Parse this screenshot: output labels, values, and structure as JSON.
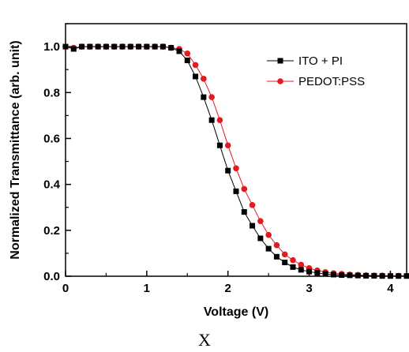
{
  "chart_data": {
    "type": "line",
    "xlabel": "Voltage (V)",
    "ylabel": "Normalized Transmittance (arb. unit)",
    "xlim": [
      0,
      4.2
    ],
    "ylim": [
      0,
      1.1
    ],
    "xticks": [
      "0",
      "1",
      "2",
      "3",
      "4"
    ],
    "yticks": [
      "0.0",
      "0.2",
      "0.4",
      "0.6",
      "0.8",
      "1.0"
    ],
    "legend_position": "top-right",
    "series": [
      {
        "name": "ITO + PI",
        "color": "#000000",
        "marker": "square",
        "x": [
          0,
          0.1,
          0.2,
          0.3,
          0.4,
          0.5,
          0.6,
          0.7,
          0.8,
          0.9,
          1.0,
          1.1,
          1.2,
          1.3,
          1.4,
          1.5,
          1.6,
          1.7,
          1.8,
          1.9,
          2.0,
          2.1,
          2.2,
          2.3,
          2.4,
          2.5,
          2.6,
          2.7,
          2.8,
          2.9,
          3.0,
          3.1,
          3.2,
          3.3,
          3.4,
          3.5,
          3.6,
          3.7,
          3.8,
          3.9,
          4.0,
          4.1,
          4.2
        ],
        "values": [
          1.0,
          0.99,
          1.0,
          1.0,
          1.0,
          1.0,
          1.0,
          1.0,
          1.0,
          1.0,
          1.0,
          1.0,
          1.0,
          0.995,
          0.98,
          0.94,
          0.87,
          0.78,
          0.68,
          0.57,
          0.46,
          0.37,
          0.28,
          0.22,
          0.165,
          0.12,
          0.085,
          0.06,
          0.04,
          0.028,
          0.02,
          0.014,
          0.01,
          0.007,
          0.005,
          0.004,
          0.003,
          0.002,
          0.002,
          0.001,
          0.001,
          0.001,
          0.001
        ]
      },
      {
        "name": "PEDOT:PSS",
        "color": "#e41a1c",
        "marker": "circle",
        "x": [
          0,
          0.1,
          0.2,
          0.3,
          0.4,
          0.5,
          0.6,
          0.7,
          0.8,
          0.9,
          1.0,
          1.1,
          1.2,
          1.3,
          1.4,
          1.5,
          1.6,
          1.7,
          1.8,
          1.9,
          2.0,
          2.1,
          2.2,
          2.3,
          2.4,
          2.5,
          2.6,
          2.7,
          2.8,
          2.9,
          3.0,
          3.1,
          3.2,
          3.3,
          3.4,
          3.5,
          3.6,
          3.7,
          3.8,
          3.9,
          4.0,
          4.1,
          4.2
        ],
        "values": [
          1.0,
          0.995,
          1.0,
          1.0,
          1.0,
          1.0,
          1.0,
          1.0,
          1.0,
          1.0,
          1.0,
          1.0,
          1.0,
          0.995,
          0.99,
          0.97,
          0.92,
          0.86,
          0.78,
          0.68,
          0.57,
          0.47,
          0.38,
          0.31,
          0.24,
          0.18,
          0.135,
          0.095,
          0.07,
          0.05,
          0.035,
          0.025,
          0.018,
          0.013,
          0.01,
          0.007,
          0.006,
          0.004,
          0.003,
          0.003,
          0.002,
          0.002,
          0.002
        ]
      }
    ]
  },
  "caption": "X"
}
